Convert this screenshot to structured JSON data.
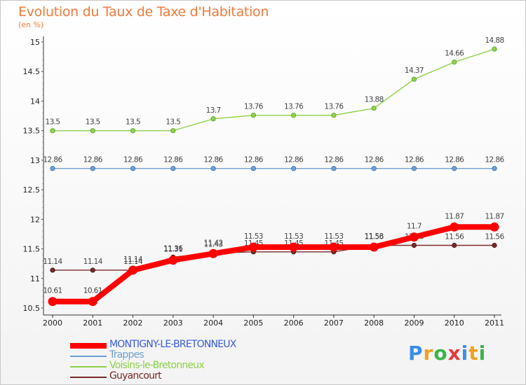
{
  "chart_data": {
    "type": "line",
    "title": "Evolution du Taux de Taxe d'Habitation",
    "ylabel": "(en %)",
    "xlabel": "",
    "x": [
      "2000",
      "2001",
      "2002",
      "2003",
      "2004",
      "2005",
      "2006",
      "2007",
      "2008",
      "2009",
      "2010",
      "2011"
    ],
    "ylim": [
      10.5,
      15
    ],
    "yticks": [
      "10.5",
      "11",
      "11.5",
      "12",
      "12.5",
      "13",
      "13.5",
      "14",
      "14.5",
      "15"
    ],
    "grid": false,
    "legend_position": "bottom-left",
    "series": [
      {
        "name": "MONTIGNY-LE-BRETONNEUX",
        "color": "#ff0000",
        "labelColor": "#3b5bdb",
        "values": [
          10.61,
          10.61,
          11.14,
          11.31,
          11.42,
          11.53,
          11.53,
          11.53,
          11.53,
          11.7,
          11.87,
          11.87
        ],
        "labels": [
          "10.61",
          "10.61",
          "11.14",
          "11.31",
          "11.42",
          "11.53",
          "11.53",
          "11.53",
          "11.53",
          "11.7",
          "11.87",
          "11.87"
        ]
      },
      {
        "name": "Trappes",
        "color": "#6fa0d0",
        "labelColor": "#6fa0d0",
        "values": [
          12.86,
          12.86,
          12.86,
          12.86,
          12.86,
          12.86,
          12.86,
          12.86,
          12.86,
          12.86,
          12.86,
          12.86
        ],
        "labels": [
          "12.86",
          "12.86",
          "12.86",
          "12.86",
          "12.86",
          "12.86",
          "12.86",
          "12.86",
          "12.86",
          "12.86",
          "12.86",
          "12.86"
        ]
      },
      {
        "name": "Voisins-le-Bretonneux",
        "color": "#8ed24a",
        "labelColor": "#8ed24a",
        "values": [
          13.5,
          13.5,
          13.5,
          13.5,
          13.7,
          13.76,
          13.76,
          13.76,
          13.88,
          14.37,
          14.66,
          14.88
        ],
        "labels": [
          "13.5",
          "13.5",
          "13.5",
          "13.5",
          "13.7",
          "13.76",
          "13.76",
          "13.76",
          "13.88",
          "14.37",
          "14.66",
          "14.88"
        ]
      },
      {
        "name": "Guyancourt",
        "color": "#7a2a2a",
        "labelColor": "#7a2a2a",
        "values": [
          11.14,
          11.14,
          11.14,
          11.36,
          11.43,
          11.45,
          11.45,
          11.45,
          11.56,
          11.56,
          11.56,
          11.56
        ],
        "labels": [
          "11.14",
          "11.14",
          "11.14",
          "11.36",
          "11.43",
          "11.45",
          "11.45",
          "11.45",
          "11.56",
          "11.56",
          "11.56",
          "11.56"
        ]
      }
    ]
  },
  "logo": {
    "text": "Proxiti",
    "colors": [
      "#3a8ee6",
      "#f0a020",
      "#3ab54a",
      "#e63a3a",
      "#3a8ee6",
      "#f0a020",
      "#3ab54a"
    ]
  }
}
